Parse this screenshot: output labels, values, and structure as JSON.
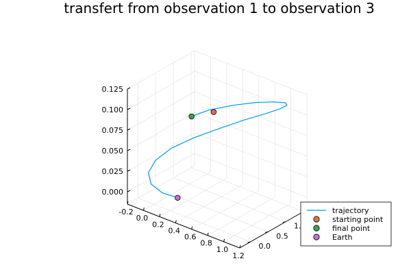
{
  "chart_data": {
    "type": "line",
    "projection": "3d",
    "title": "transfert from observation 1 to observation 3",
    "xlabel": "",
    "ylabel": "",
    "zlabel": "",
    "xlim": [
      -0.2,
      1.2
    ],
    "ylim": [
      -0.3,
      1.6
    ],
    "zlim": [
      -0.015,
      0.125
    ],
    "x_ticks": [
      "-0.2",
      "0.0",
      "0.2",
      "0.4",
      "0.6",
      "0.8",
      "1.0",
      "1.2"
    ],
    "y_ticks": [
      "0.0",
      "0.5",
      "1.0",
      "1.5"
    ],
    "z_ticks": [
      "0.000",
      "0.025",
      "0.050",
      "0.075",
      "0.100",
      "0.125"
    ],
    "grid": true,
    "legend": "bottom-right",
    "series": [
      {
        "name": "trajectory",
        "type": "line",
        "color": "#009AFA",
        "x": [
          0.25,
          0.1,
          -0.02,
          -0.08,
          -0.06,
          0.04,
          0.21,
          0.42,
          0.62,
          0.8,
          0.93,
          1.0,
          1.0,
          0.92,
          0.78,
          0.6,
          0.42,
          0.3
        ],
        "y": [
          0.1,
          0.0,
          -0.04,
          0.02,
          0.18,
          0.4,
          0.65,
          0.92,
          1.15,
          1.33,
          1.45,
          1.49,
          1.45,
          1.33,
          1.13,
          0.87,
          0.6,
          0.38
        ],
        "z": [
          0.0,
          0.003,
          0.01,
          0.02,
          0.032,
          0.045,
          0.058,
          0.071,
          0.083,
          0.093,
          0.101,
          0.107,
          0.111,
          0.112,
          0.111,
          0.107,
          0.101,
          0.094
        ]
      },
      {
        "name": "starting point",
        "type": "scatter",
        "color": "#E26F46",
        "x": [
          0.47
        ],
        "y": [
          0.62
        ],
        "z": [
          0.1
        ]
      },
      {
        "name": "final point",
        "type": "scatter",
        "color": "#3EA44E",
        "x": [
          0.3
        ],
        "y": [
          0.38
        ],
        "z": [
          0.094
        ]
      },
      {
        "name": "Earth",
        "type": "scatter",
        "color": "#C271D2",
        "x": [
          0.25
        ],
        "y": [
          0.1
        ],
        "z": [
          0.0
        ]
      }
    ]
  }
}
